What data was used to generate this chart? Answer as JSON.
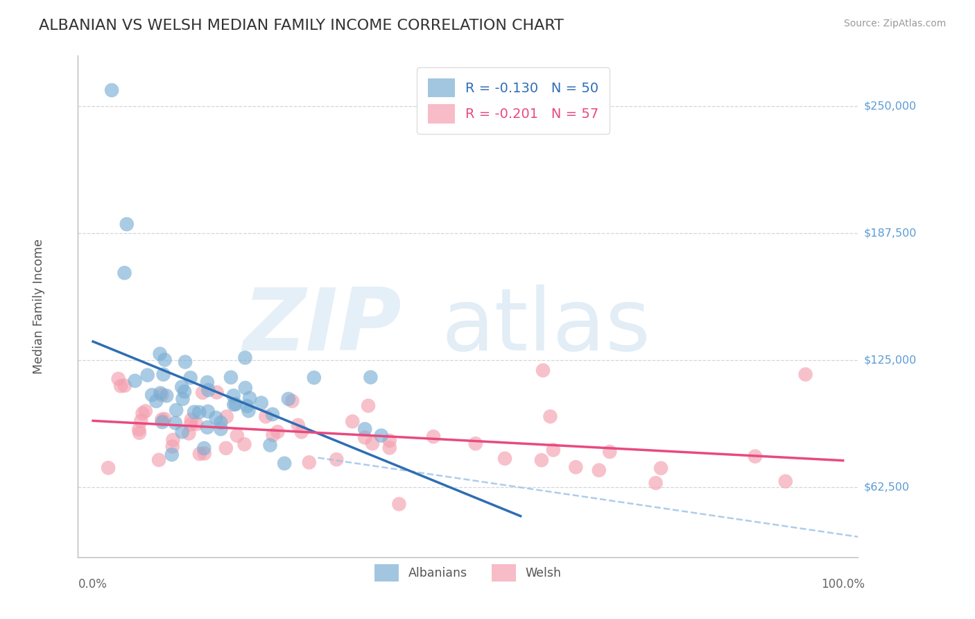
{
  "title": "ALBANIAN VS WELSH MEDIAN FAMILY INCOME CORRELATION CHART",
  "source": "Source: ZipAtlas.com",
  "ylabel": "Median Family Income",
  "ytick_values": [
    62500,
    125000,
    187500,
    250000
  ],
  "ytick_labels": [
    "$62,500",
    "$125,000",
    "$187,500",
    "$250,000"
  ],
  "ymin": 28000,
  "ymax": 275000,
  "xmin": -0.02,
  "xmax": 1.02,
  "albanians_color": "#7bafd4",
  "albanians_line_color": "#2e6db4",
  "welsh_color": "#f4a0b0",
  "welsh_line_color": "#e84a7f",
  "dash_color": "#a0c4e8",
  "albanians_label": "Albanians",
  "welsh_label": "Welsh",
  "legend_R_albanians": "R = -0.130",
  "legend_N_albanians": "N = 50",
  "legend_R_welsh": "R = -0.201",
  "legend_N_welsh": "N = 57",
  "background_color": "#ffffff",
  "grid_color": "#cccccc",
  "title_color": "#333333",
  "ytick_color": "#5b9bd5",
  "source_color": "#999999",
  "spine_color": "#bbbbbb",
  "xlabel_color": "#666666"
}
